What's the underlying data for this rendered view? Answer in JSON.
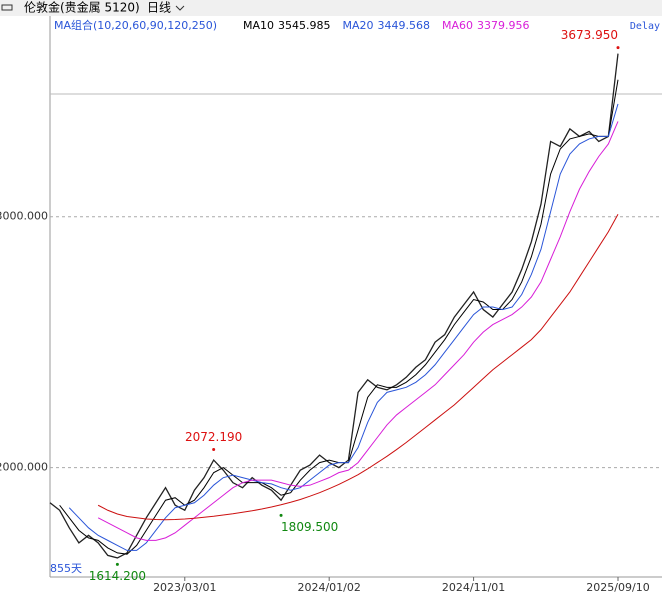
{
  "header": {
    "title": "伦敦金(贵金属 5120)",
    "period": "日线"
  },
  "chart_data": {
    "type": "line",
    "ma_title": "MA组合(10,20,60,90,120,250)",
    "delay": "Delay",
    "span": "855天",
    "ylim": [
      1564,
      3800
    ],
    "yticks": [
      {
        "value": 2000,
        "label": "2000.000"
      },
      {
        "value": 3000,
        "label": "3000.000"
      }
    ],
    "xlim": [
      0,
      59
    ],
    "xticks": [
      {
        "value": 14,
        "label": "2023/03/01"
      },
      {
        "value": 29,
        "label": "2024/01/02"
      },
      {
        "value": 44,
        "label": "2024/11/01"
      },
      {
        "value": 59,
        "label": "2025/09/10"
      }
    ],
    "grid": true,
    "series": [
      {
        "color": "#222222",
        "values": [
          1860,
          1830,
          1760,
          1700,
          1730,
          1700,
          1650,
          1640,
          1660,
          1730,
          1800,
          1860,
          1920,
          1850,
          1830,
          1910,
          1960,
          2030,
          1990,
          1940,
          1920,
          1960,
          1930,
          1910,
          1870,
          1930,
          1990,
          2010,
          2050,
          2020,
          2000,
          2030,
          2300,
          2350,
          2320,
          2310,
          2330,
          2360,
          2400,
          2430,
          2500,
          2530,
          2600,
          2650,
          2700,
          2630,
          2600,
          2650,
          2700,
          2790,
          2900,
          3050,
          3300,
          3280,
          3350,
          3320,
          3340,
          3300,
          3320,
          3650
        ]
      },
      {
        "name": "MA10",
        "color": "#000000",
        "values": [
          null,
          1850,
          1800,
          1750,
          1720,
          1710,
          1680,
          1660,
          1655,
          1690,
          1750,
          1810,
          1870,
          1880,
          1850,
          1870,
          1920,
          1980,
          2000,
          1970,
          1940,
          1940,
          1940,
          1920,
          1890,
          1900,
          1950,
          1990,
          2020,
          2030,
          2020,
          2020,
          2150,
          2280,
          2330,
          2320,
          2320,
          2340,
          2370,
          2410,
          2460,
          2510,
          2570,
          2620,
          2670,
          2660,
          2630,
          2630,
          2670,
          2740,
          2840,
          2970,
          3170,
          3270,
          3310,
          3320,
          3330,
          3320,
          3320,
          3545.985
        ]
      },
      {
        "name": "MA20",
        "color": "#2a55d8",
        "values": [
          null,
          null,
          1840,
          1800,
          1760,
          1730,
          1710,
          1690,
          1670,
          1670,
          1700,
          1750,
          1800,
          1840,
          1850,
          1860,
          1890,
          1930,
          1960,
          1970,
          1960,
          1950,
          1940,
          1935,
          1920,
          1910,
          1920,
          1950,
          1980,
          2010,
          2020,
          2020,
          2080,
          2180,
          2260,
          2300,
          2310,
          2320,
          2340,
          2370,
          2410,
          2460,
          2510,
          2560,
          2610,
          2640,
          2640,
          2630,
          2640,
          2690,
          2770,
          2870,
          3020,
          3170,
          3250,
          3290,
          3310,
          3320,
          3320,
          3449.568
        ]
      },
      {
        "name": "MA60",
        "color": "#d81ed8",
        "values": [
          null,
          null,
          null,
          null,
          null,
          1800,
          1780,
          1760,
          1740,
          1720,
          1710,
          1710,
          1720,
          1740,
          1770,
          1800,
          1830,
          1860,
          1890,
          1920,
          1940,
          1950,
          1950,
          1950,
          1940,
          1930,
          1925,
          1930,
          1945,
          1960,
          1980,
          1990,
          2020,
          2070,
          2120,
          2170,
          2210,
          2240,
          2270,
          2300,
          2330,
          2370,
          2410,
          2450,
          2500,
          2540,
          2570,
          2590,
          2610,
          2640,
          2680,
          2740,
          2830,
          2920,
          3020,
          3110,
          3180,
          3240,
          3290,
          3379.956
        ]
      },
      {
        "color": "#cc1010",
        "values": [
          null,
          null,
          null,
          null,
          null,
          1850,
          1830,
          1815,
          1805,
          1800,
          1795,
          1793,
          1792,
          1793,
          1795,
          1798,
          1802,
          1806,
          1811,
          1816,
          1822,
          1828,
          1835,
          1843,
          1852,
          1862,
          1873,
          1886,
          1900,
          1916,
          1933,
          1952,
          1972,
          1995,
          2020,
          2045,
          2072,
          2100,
          2130,
          2160,
          2190,
          2220,
          2250,
          2285,
          2320,
          2355,
          2390,
          2420,
          2450,
          2480,
          2510,
          2550,
          2600,
          2650,
          2700,
          2760,
          2820,
          2880,
          2940,
          3010
        ]
      }
    ],
    "annotations": [
      {
        "x": 59,
        "value": 3673.95,
        "label": "3673.950",
        "color": "#dd1111",
        "anchor": "end"
      },
      {
        "x": 17,
        "value": 2072.19,
        "label": "2072.190",
        "color": "#dd1111",
        "anchor": "middle"
      },
      {
        "x": 24,
        "value": 1809.5,
        "label": "1809.500",
        "color": "#118811",
        "anchor": "start"
      },
      {
        "x": 7,
        "value": 1614.2,
        "label": "1614.200",
        "color": "#118811",
        "anchor": "middle"
      }
    ]
  }
}
